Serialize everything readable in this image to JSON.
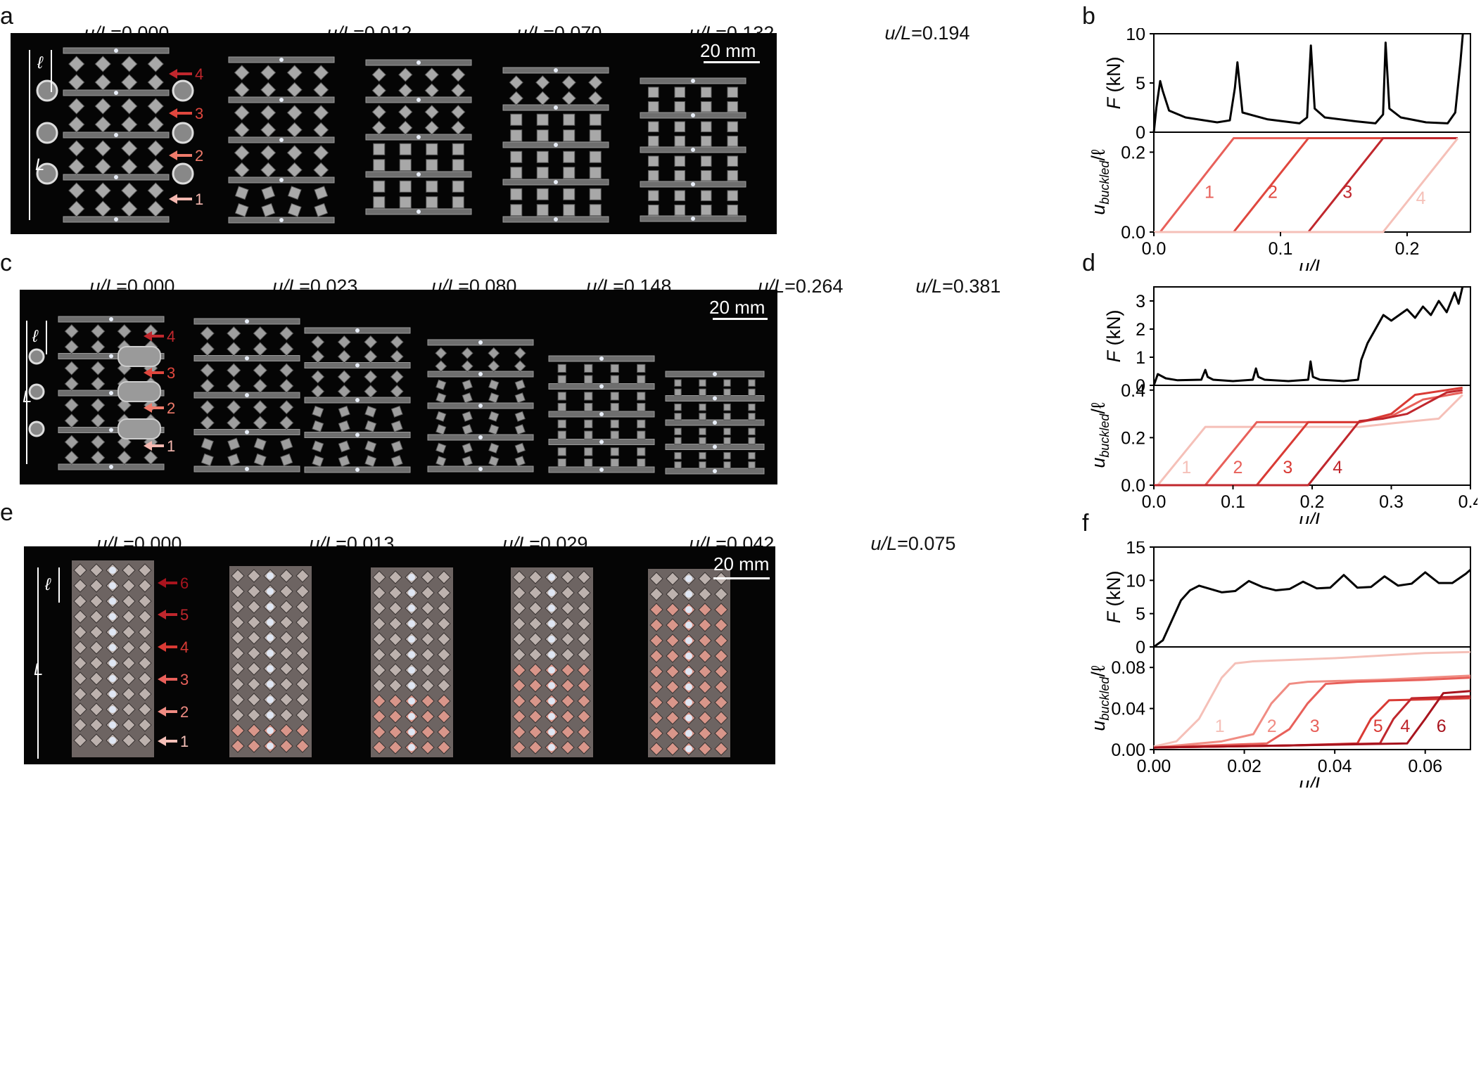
{
  "panels": {
    "a": {
      "label": "a",
      "states": [
        {
          "prefix": "u/L",
          "value": "=0.000"
        },
        {
          "prefix": "u/L",
          "value": "=0.012"
        },
        {
          "prefix": "u/L",
          "value": "=0.070"
        },
        {
          "prefix": "u/L",
          "value": "=0.132"
        },
        {
          "prefix": "u/L",
          "value": "=0.194"
        }
      ],
      "scale_bar": "20 mm",
      "arrow_labels": [
        "4",
        "3",
        "2",
        "1"
      ],
      "dim_labels": [
        "ℓ",
        "L"
      ]
    },
    "b": {
      "label": "b"
    },
    "c": {
      "label": "c",
      "states": [
        {
          "prefix": "u/L",
          "value": "=0.000"
        },
        {
          "prefix": "u/L",
          "value": "=0.023"
        },
        {
          "prefix": "u/L",
          "value": "=0.080"
        },
        {
          "prefix": "u/L",
          "value": "=0.148"
        },
        {
          "prefix": "u/L",
          "value": "=0.264"
        },
        {
          "prefix": "u/L",
          "value": "=0.381"
        }
      ],
      "scale_bar": "20 mm",
      "arrow_labels": [
        "4",
        "3",
        "2",
        "1"
      ],
      "dim_labels": [
        "ℓ",
        "L"
      ]
    },
    "d": {
      "label": "d"
    },
    "e": {
      "label": "e",
      "states": [
        {
          "prefix": "u/L",
          "value": "=0.000"
        },
        {
          "prefix": "u/L",
          "value": "=0.013"
        },
        {
          "prefix": "u/L",
          "value": "=0.029"
        },
        {
          "prefix": "u/L",
          "value": "=0.042"
        },
        {
          "prefix": "u/L",
          "value": "=0.075"
        }
      ],
      "scale_bar": "20 mm",
      "arrow_labels": [
        "6",
        "5",
        "4",
        "3",
        "2",
        "1"
      ],
      "dim_labels": [
        "ℓ",
        "L"
      ]
    },
    "f": {
      "label": "f"
    }
  },
  "colors": {
    "photo_bg": "#050505",
    "arrows_4": [
      "#c0272d",
      "#e0473e",
      "#ef7b6b",
      "#f5b8b0"
    ],
    "arrows_6": [
      "#a8141e",
      "#c0272d",
      "#d93a34",
      "#e8605a",
      "#f08c83",
      "#f5c0b8"
    ],
    "force_line": "#000000"
  },
  "chart_data": [
    {
      "id": "b",
      "type": "line",
      "panels": [
        {
          "name": "force",
          "ylabel": "F (kN)",
          "ylim": [
            0,
            10
          ],
          "yticks": [
            0,
            5,
            10
          ],
          "series": [
            {
              "x": [
                0,
                0.002,
                0.005,
                0.007,
                0.012,
                0.025,
                0.05,
                0.06,
                0.064,
                0.066,
                0.07,
                0.09,
                0.115,
                0.121,
                0.124,
                0.127,
                0.135,
                0.16,
                0.175,
                0.181,
                0.183,
                0.186,
                0.195,
                0.215,
                0.232,
                0.238,
                0.242,
                0.244
              ],
              "y": [
                0,
                2.5,
                5.2,
                4.2,
                2.2,
                1.5,
                1.0,
                1.2,
                4.5,
                7.1,
                2.0,
                1.3,
                0.9,
                1.5,
                8.8,
                2.4,
                1.5,
                1.1,
                0.9,
                1.8,
                9.1,
                2.4,
                1.5,
                1.0,
                0.9,
                2.0,
                7.0,
                10
              ]
            }
          ]
        },
        {
          "name": "displacement",
          "ylabel": "u_buckled/ℓ",
          "ylim": [
            0,
            0.25
          ],
          "yticks": [
            0.0,
            0.2
          ],
          "series": [
            {
              "name": "1",
              "x": [
                0,
                0.005,
                0.063,
                0.24
              ],
              "y": [
                0,
                0,
                0.235,
                0.235
              ]
            },
            {
              "name": "2",
              "x": [
                0,
                0.063,
                0.122,
                0.24
              ],
              "y": [
                0,
                0,
                0.235,
                0.235
              ]
            },
            {
              "name": "3",
              "x": [
                0,
                0.122,
                0.181,
                0.24
              ],
              "y": [
                0,
                0,
                0.235,
                0.235
              ]
            },
            {
              "name": "4",
              "x": [
                0,
                0.181,
                0.24
              ],
              "y": [
                0,
                0,
                0.235
              ]
            }
          ]
        }
      ],
      "xlabel": "u/L",
      "xlim": [
        0,
        0.25
      ],
      "xticks": [
        0.0,
        0.1,
        0.2
      ]
    },
    {
      "id": "d",
      "type": "line",
      "panels": [
        {
          "name": "force",
          "ylabel": "F (kN)",
          "ylim": [
            0,
            3.5
          ],
          "yticks": [
            0,
            1,
            2,
            3
          ],
          "series": [
            {
              "x": [
                0,
                0.005,
                0.015,
                0.03,
                0.06,
                0.065,
                0.068,
                0.075,
                0.1,
                0.125,
                0.129,
                0.132,
                0.14,
                0.17,
                0.195,
                0.198,
                0.201,
                0.21,
                0.24,
                0.258,
                0.262,
                0.27,
                0.28,
                0.29,
                0.3,
                0.31,
                0.32,
                0.33,
                0.34,
                0.35,
                0.36,
                0.37,
                0.38,
                0.385,
                0.39
              ],
              "y": [
                0,
                0.4,
                0.25,
                0.18,
                0.2,
                0.55,
                0.3,
                0.2,
                0.15,
                0.2,
                0.6,
                0.3,
                0.2,
                0.15,
                0.2,
                0.85,
                0.3,
                0.2,
                0.15,
                0.2,
                0.9,
                1.5,
                2.0,
                2.5,
                2.3,
                2.5,
                2.7,
                2.4,
                2.8,
                2.5,
                3.0,
                2.6,
                3.3,
                2.9,
                3.6
              ]
            }
          ]
        },
        {
          "name": "displacement",
          "ylabel": "u_buckled/ℓ",
          "ylim": [
            0,
            0.42
          ],
          "yticks": [
            0.0,
            0.2,
            0.4
          ],
          "series": [
            {
              "name": "1",
              "x": [
                0,
                0.005,
                0.065,
                0.26,
                0.3,
                0.36,
                0.39
              ],
              "y": [
                0,
                0,
                0.245,
                0.245,
                0.26,
                0.28,
                0.38
              ]
            },
            {
              "name": "2",
              "x": [
                0,
                0.065,
                0.13,
                0.26,
                0.3,
                0.34,
                0.39
              ],
              "y": [
                0,
                0,
                0.265,
                0.265,
                0.29,
                0.36,
                0.39
              ]
            },
            {
              "name": "3",
              "x": [
                0,
                0.13,
                0.195,
                0.26,
                0.3,
                0.33,
                0.39
              ],
              "y": [
                0,
                0,
                0.265,
                0.265,
                0.3,
                0.38,
                0.41
              ]
            },
            {
              "name": "4",
              "x": [
                0,
                0.195,
                0.26,
                0.29,
                0.32,
                0.37,
                0.39
              ],
              "y": [
                0,
                0,
                0.27,
                0.28,
                0.3,
                0.39,
                0.4
              ]
            }
          ]
        }
      ],
      "xlabel": "u/L",
      "xlim": [
        0,
        0.4
      ],
      "xticks": [
        0.0,
        0.1,
        0.2,
        0.3,
        0.4
      ]
    },
    {
      "id": "f",
      "type": "line",
      "panels": [
        {
          "name": "force",
          "ylabel": "F (kN)",
          "ylim": [
            0,
            15
          ],
          "yticks": [
            0,
            5,
            10,
            15
          ],
          "series": [
            {
              "x": [
                0,
                0.002,
                0.004,
                0.006,
                0.008,
                0.01,
                0.012,
                0.015,
                0.018,
                0.021,
                0.024,
                0.027,
                0.03,
                0.033,
                0.036,
                0.039,
                0.042,
                0.045,
                0.048,
                0.051,
                0.054,
                0.057,
                0.06,
                0.063,
                0.066,
                0.069,
                0.07
              ],
              "y": [
                0,
                1,
                4,
                7,
                8.5,
                9.2,
                8.8,
                8.2,
                8.4,
                9.9,
                9.0,
                8.5,
                8.7,
                9.8,
                8.8,
                8.9,
                10.8,
                8.9,
                9.0,
                10.6,
                9.2,
                9.5,
                11.2,
                9.6,
                9.6,
                11.0,
                11.6
              ]
            }
          ]
        },
        {
          "name": "displacement",
          "ylabel": "u_buckled/ℓ",
          "ylim": [
            0,
            0.1
          ],
          "yticks": [
            0.0,
            0.04,
            0.08
          ],
          "series": [
            {
              "name": "1",
              "x": [
                0,
                0.005,
                0.01,
                0.015,
                0.018,
                0.022,
                0.04,
                0.06,
                0.07
              ],
              "y": [
                0.003,
                0.008,
                0.03,
                0.07,
                0.084,
                0.086,
                0.089,
                0.094,
                0.095
              ]
            },
            {
              "name": "2",
              "x": [
                0,
                0.015,
                0.022,
                0.026,
                0.03,
                0.034,
                0.05,
                0.07
              ],
              "y": [
                0.002,
                0.008,
                0.015,
                0.045,
                0.064,
                0.066,
                0.068,
                0.072
              ]
            },
            {
              "name": "3",
              "x": [
                0,
                0.025,
                0.03,
                0.034,
                0.038,
                0.045,
                0.06,
                0.07
              ],
              "y": [
                0.002,
                0.006,
                0.02,
                0.045,
                0.064,
                0.066,
                0.068,
                0.07
              ]
            },
            {
              "name": "5",
              "x": [
                0,
                0.03,
                0.045,
                0.048,
                0.052,
                0.07
              ],
              "y": [
                0.002,
                0.004,
                0.006,
                0.03,
                0.048,
                0.05
              ]
            },
            {
              "name": "4",
              "x": [
                0,
                0.03,
                0.05,
                0.053,
                0.057,
                0.07
              ],
              "y": [
                0.002,
                0.004,
                0.006,
                0.03,
                0.05,
                0.052
              ]
            },
            {
              "name": "6",
              "x": [
                0,
                0.03,
                0.056,
                0.06,
                0.064,
                0.07
              ],
              "y": [
                0.002,
                0.004,
                0.006,
                0.03,
                0.055,
                0.057
              ]
            }
          ]
        }
      ],
      "xlabel": "u/L",
      "xlim": [
        0,
        0.07
      ],
      "xticks": [
        0.0,
        0.02,
        0.04,
        0.06
      ]
    }
  ]
}
